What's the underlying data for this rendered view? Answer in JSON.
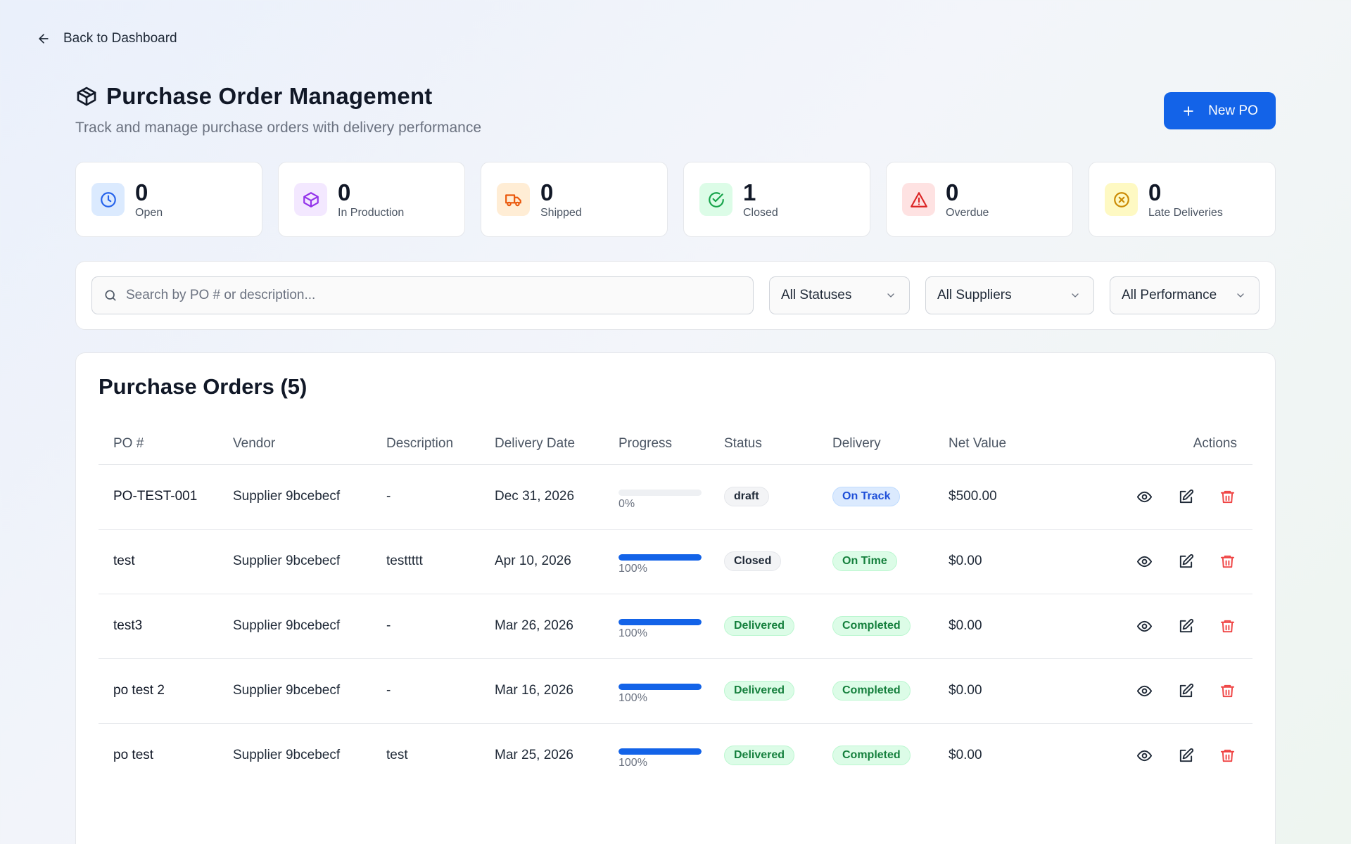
{
  "nav": {
    "back_label": "Back to Dashboard"
  },
  "header": {
    "title": "Purchase Order Management",
    "subtitle": "Track and manage purchase orders with delivery performance",
    "new_po_label": "New PO"
  },
  "stats": [
    {
      "value": "0",
      "label": "Open",
      "icon": "clock-icon",
      "bg": "#dbeafe",
      "color": "#2563eb"
    },
    {
      "value": "0",
      "label": "In Production",
      "icon": "package-icon",
      "bg": "#f3e8ff",
      "color": "#9333ea"
    },
    {
      "value": "0",
      "label": "Shipped",
      "icon": "truck-icon",
      "bg": "#ffedd5",
      "color": "#ea580c"
    },
    {
      "value": "1",
      "label": "Closed",
      "icon": "check-circle-icon",
      "bg": "#dcfce7",
      "color": "#16a34a"
    },
    {
      "value": "0",
      "label": "Overdue",
      "icon": "alert-triangle-icon",
      "bg": "#fee2e2",
      "color": "#dc2626"
    },
    {
      "value": "0",
      "label": "Late Deliveries",
      "icon": "x-circle-icon",
      "bg": "#fef9c3",
      "color": "#ca8a04"
    }
  ],
  "filters": {
    "search_placeholder": "Search by PO # or description...",
    "status": "All Statuses",
    "supplier": "All Suppliers",
    "performance": "All Performance"
  },
  "orders": {
    "title": "Purchase Orders (5)",
    "columns": [
      "PO #",
      "Vendor",
      "Description",
      "Delivery Date",
      "Progress",
      "Status",
      "Delivery",
      "Net Value",
      "Actions"
    ],
    "rows": [
      {
        "po": "PO-TEST-001",
        "vendor": "Supplier 9bcebecf",
        "description": "-",
        "date": "Dec 31, 2026",
        "progress": 0,
        "progress_label": "0%",
        "status": "draft",
        "status_style": "gray",
        "delivery": "On Track",
        "delivery_style": "blue",
        "net": "$500.00"
      },
      {
        "po": "test",
        "vendor": "Supplier 9bcebecf",
        "description": "testtttt",
        "date": "Apr 10, 2026",
        "progress": 100,
        "progress_label": "100%",
        "status": "Closed",
        "status_style": "gray",
        "delivery": "On Time",
        "delivery_style": "green",
        "net": "$0.00"
      },
      {
        "po": "test3",
        "vendor": "Supplier 9bcebecf",
        "description": "-",
        "date": "Mar 26, 2026",
        "progress": 100,
        "progress_label": "100%",
        "status": "Delivered",
        "status_style": "green",
        "delivery": "Completed",
        "delivery_style": "green",
        "net": "$0.00"
      },
      {
        "po": "po test 2",
        "vendor": "Supplier 9bcebecf",
        "description": "-",
        "date": "Mar 16, 2026",
        "progress": 100,
        "progress_label": "100%",
        "status": "Delivered",
        "status_style": "green",
        "delivery": "Completed",
        "delivery_style": "green",
        "net": "$0.00"
      },
      {
        "po": "po test",
        "vendor": "Supplier 9bcebecf",
        "description": "test",
        "date": "Mar 25, 2026",
        "progress": 100,
        "progress_label": "100%",
        "status": "Delivered",
        "status_style": "green",
        "delivery": "Completed",
        "delivery_style": "green",
        "net": "$0.00"
      }
    ]
  }
}
